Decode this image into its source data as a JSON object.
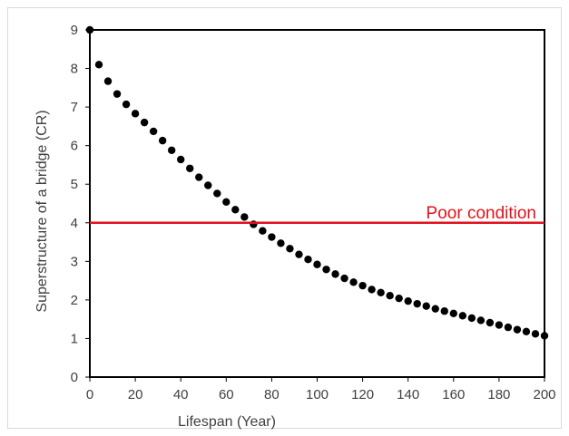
{
  "chart_data": {
    "type": "scatter",
    "title": "",
    "xlabel": "Lifespan (Year)",
    "ylabel": "Superstructure of a bridge (CR)",
    "xlim": [
      0,
      200
    ],
    "ylim": [
      0,
      9
    ],
    "xticks": [
      0,
      20,
      40,
      60,
      80,
      100,
      120,
      140,
      160,
      180,
      200
    ],
    "yticks": [
      0,
      1,
      2,
      3,
      4,
      5,
      6,
      7,
      8,
      9
    ],
    "grid": false,
    "point_color": "#000000",
    "x": [
      0,
      4,
      8,
      12,
      16,
      20,
      24,
      28,
      32,
      36,
      40,
      44,
      48,
      52,
      56,
      60,
      64,
      68,
      72,
      76,
      80,
      84,
      88,
      92,
      96,
      100,
      104,
      108,
      112,
      116,
      120,
      124,
      128,
      132,
      136,
      140,
      144,
      148,
      152,
      156,
      160,
      164,
      168,
      172,
      176,
      180,
      184,
      188,
      192,
      196,
      200
    ],
    "y": [
      9.0,
      8.1,
      7.67,
      7.34,
      7.07,
      6.83,
      6.6,
      6.37,
      6.13,
      5.88,
      5.64,
      5.41,
      5.18,
      4.97,
      4.76,
      4.54,
      4.34,
      4.15,
      3.96,
      3.79,
      3.63,
      3.47,
      3.33,
      3.18,
      3.05,
      2.92,
      2.79,
      2.67,
      2.56,
      2.46,
      2.37,
      2.27,
      2.19,
      2.11,
      2.04,
      1.97,
      1.9,
      1.84,
      1.77,
      1.71,
      1.65,
      1.59,
      1.53,
      1.47,
      1.41,
      1.35,
      1.29,
      1.23,
      1.18,
      1.12,
      1.07
    ],
    "threshold": {
      "value": 4,
      "label": "Poor condition",
      "color": "#e0121c"
    }
  }
}
